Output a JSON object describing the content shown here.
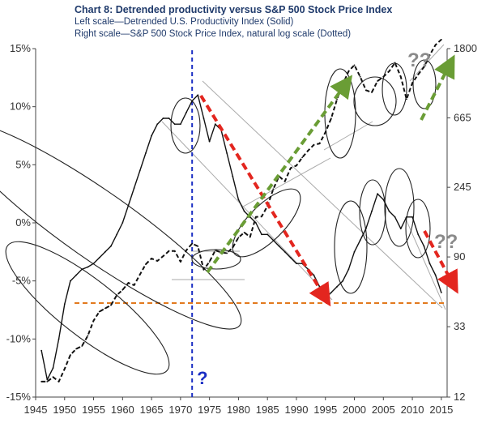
{
  "header": {
    "title": "Chart 8: Detrended productivity versus S&P 500 Stock Price Index",
    "subtitle_left": "Left scale—Detrended U.S. Productivity Index (Solid)",
    "subtitle_right": "Right scale—S&P 500 Stock Price Index, natural log scale (Dotted)"
  },
  "chart_data": {
    "type": "line",
    "title": "Chart 8: Detrended productivity versus S&P 500 Stock Price Index",
    "x_ticks": [
      "1945",
      "1950",
      "1955",
      "1960",
      "1965",
      "1970",
      "1975",
      "1980",
      "1985",
      "1990",
      "1995",
      "2000",
      "2005",
      "2010",
      "2015"
    ],
    "xlim": [
      1945,
      2016
    ],
    "left_axis": {
      "label": "Left scale—Detrended U.S. Productivity Index (Solid)",
      "ticks": [
        "15%",
        "10%",
        "5%",
        "0%",
        "-5%",
        "-10%",
        "-15%"
      ],
      "tick_values": [
        15,
        10,
        5,
        0,
        -5,
        -10,
        -15
      ],
      "ylim": [
        -15,
        15
      ]
    },
    "right_axis": {
      "label": "Right scale—S&P 500 Stock Price Index, natural log scale (Dotted)",
      "ticks": [
        "1800",
        "665",
        "245",
        "90",
        "33",
        "12"
      ],
      "tick_values": [
        1800,
        665,
        245,
        90,
        33,
        12
      ],
      "scale": "log",
      "ylim": [
        12,
        1800
      ]
    },
    "series": [
      {
        "style": "solid",
        "axis": "left",
        "x": [
          1946,
          1947,
          1948,
          1949,
          1950,
          1951,
          1952,
          1953,
          1954,
          1955,
          1956,
          1957,
          1958,
          1959,
          1960,
          1961,
          1962,
          1963,
          1964,
          1965,
          1966,
          1967,
          1968,
          1969,
          1970,
          1971,
          1972,
          1973,
          1974,
          1975,
          1976,
          1977,
          1978,
          1979,
          1980,
          1981,
          1982,
          1983,
          1984,
          1985,
          1986,
          1987,
          1988,
          1989,
          1990,
          1991,
          1992,
          1993,
          1994,
          1995,
          1996,
          1997,
          1998,
          1999,
          2000,
          2001,
          2002,
          2003,
          2004,
          2005,
          2006,
          2007,
          2008,
          2009,
          2010,
          2011,
          2012,
          2013,
          2014,
          2015
        ],
        "values": [
          -11,
          -13.5,
          -12.5,
          -10,
          -7,
          -5,
          -4.5,
          -4,
          -3.8,
          -3.5,
          -3,
          -2.5,
          -2,
          -1,
          0,
          1.5,
          3,
          4.5,
          6,
          7.5,
          8.5,
          9,
          9,
          8.5,
          8.5,
          9.5,
          10.5,
          11,
          9,
          7,
          8.5,
          8,
          6,
          4,
          2,
          1,
          0.5,
          0,
          -1,
          -1,
          -1.5,
          -2,
          -2.5,
          -3,
          -3.5,
          -3.5,
          -4,
          -4.5,
          -5.5,
          -6.5,
          -6,
          -5.5,
          -5,
          -4,
          -2.5,
          -1.5,
          -0.5,
          1,
          2.5,
          2,
          1,
          0.5,
          -0.5,
          0.5,
          0.5,
          -1,
          -2,
          -3.5,
          -4.5,
          -6
        ]
      },
      {
        "style": "dotted",
        "axis": "right",
        "x": [
          1946,
          1947,
          1948,
          1949,
          1950,
          1951,
          1952,
          1953,
          1954,
          1955,
          1956,
          1957,
          1958,
          1959,
          1960,
          1961,
          1962,
          1963,
          1964,
          1965,
          1966,
          1967,
          1968,
          1969,
          1970,
          1971,
          1972,
          1973,
          1974,
          1975,
          1976,
          1977,
          1978,
          1979,
          1980,
          1981,
          1982,
          1983,
          1984,
          1985,
          1986,
          1987,
          1988,
          1989,
          1990,
          1991,
          1992,
          1993,
          1994,
          1995,
          1996,
          1997,
          1998,
          1999,
          2000,
          2001,
          2002,
          2003,
          2004,
          2005,
          2006,
          2007,
          2008,
          2009,
          2010,
          2011,
          2012,
          2013,
          2014,
          2015
        ],
        "values": [
          15,
          15,
          16,
          15,
          18,
          22,
          24,
          25,
          29,
          36,
          41,
          43,
          45,
          52,
          56,
          62,
          60,
          70,
          81,
          88,
          85,
          91,
          98,
          98,
          84,
          99,
          109,
          105,
          75,
          84,
          99,
          96,
          95,
          103,
          119,
          128,
          120,
          160,
          161,
          187,
          239,
          287,
          267,
          323,
          335,
          376,
          415,
          451,
          460,
          540,
          660,
          870,
          1080,
          1300,
          1420,
          1200,
          990,
          960,
          1130,
          1200,
          1300,
          1470,
          1200,
          870,
          1100,
          1240,
          1380,
          1640,
          1900,
          2050
        ]
      }
    ],
    "annotations": [
      "?",
      "??",
      "??"
    ],
    "grid": false
  }
}
